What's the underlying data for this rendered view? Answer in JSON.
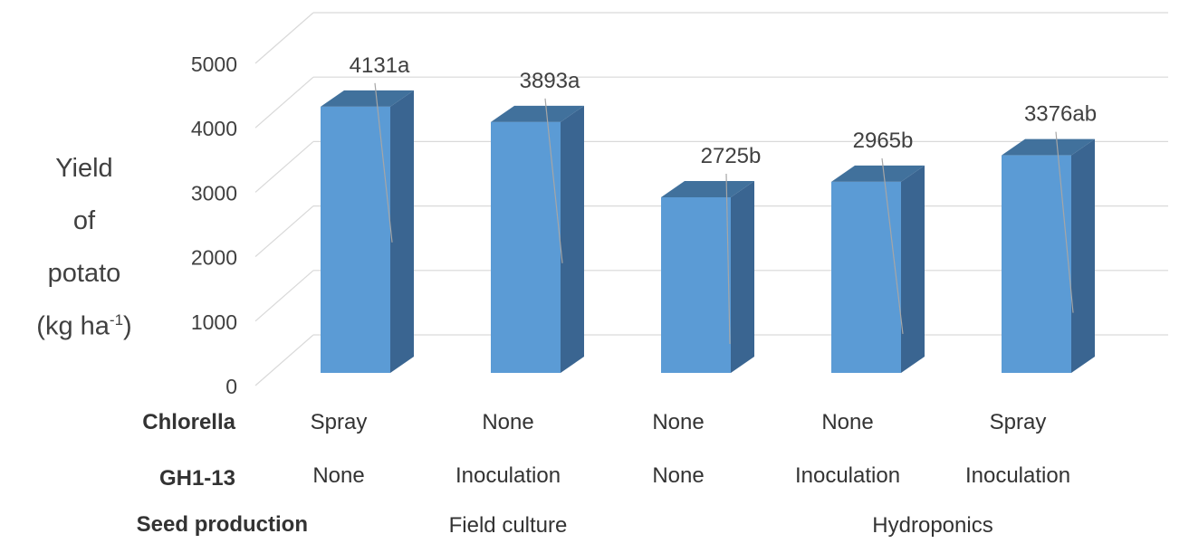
{
  "chart_data": {
    "type": "bar",
    "style": "3d-column",
    "ylabel_lines": [
      "Yield",
      "of",
      "potato"
    ],
    "ylabel_unit_pre": "(kg ha",
    "ylabel_unit_sup": "-1",
    "ylabel_unit_post": ")",
    "ylim": [
      0,
      5000
    ],
    "yticks": [
      "0",
      "1000",
      "2000",
      "3000",
      "4000",
      "5000"
    ],
    "ytick_values": [
      0,
      1000,
      2000,
      3000,
      4000,
      5000
    ],
    "grid": true,
    "values": [
      4131,
      3893,
      2725,
      2965,
      3376
    ],
    "data_labels": [
      "4131a",
      "3893a",
      "2725b",
      "2965b",
      "3376ab"
    ],
    "bar_color": "#5b9bd5",
    "bar_side_color": "#3a6591",
    "bar_top_color": "#41719c"
  },
  "table": {
    "chlorella": {
      "label": "Chlorella",
      "values": [
        "Spray",
        "None",
        "None",
        "None",
        "Spray"
      ]
    },
    "gh113": {
      "label": "GH1-13",
      "values": [
        "None",
        "Inoculation",
        "None",
        "Inoculation",
        "Inoculation"
      ]
    },
    "seed": {
      "label": "Seed production",
      "groups": [
        "Field culture",
        "Hydroponics"
      ]
    }
  }
}
